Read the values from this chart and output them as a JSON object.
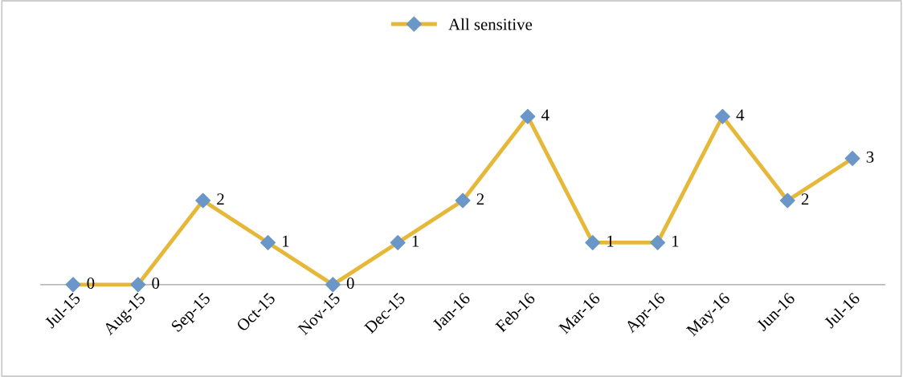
{
  "chart_data": {
    "type": "line",
    "categories": [
      "Jul-15",
      "Aug-15",
      "Sep-15",
      "Oct-15",
      "Nov-15",
      "Dec-15",
      "Jan-16",
      "Feb-16",
      "Mar-16",
      "Apr-16",
      "May-16",
      "Jun-16",
      "Jul-16"
    ],
    "series": [
      {
        "name": "All sensitive",
        "color": "#e6b83a",
        "colors": [
          "#6b96c8",
          "#6b96c8",
          "#6b96c8",
          "#6b96c8",
          "#6b96c8",
          "#6b96c8",
          "#6b96c8",
          "#6b96c8",
          "#6b96c8",
          "#6b96c8",
          "#6b96c8",
          "#6b96c8",
          "#6b96c8"
        ],
        "values": [
          0,
          0,
          2,
          1,
          0,
          1,
          2,
          4,
          1,
          1,
          4,
          2,
          3
        ]
      }
    ],
    "data_labels": true,
    "legend": "top",
    "marker": "diamond",
    "line_style": "solid",
    "tick_labels": "x"
  }
}
